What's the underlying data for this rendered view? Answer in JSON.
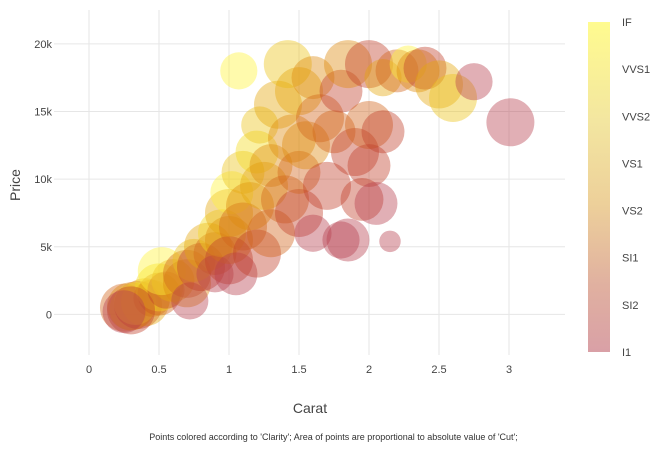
{
  "chart_data": {
    "type": "scatter",
    "variant": "bubble",
    "xlabel": "Carat",
    "ylabel": "Price",
    "xlim": [
      -0.25,
      3.4
    ],
    "ylim": [
      -3000,
      22500
    ],
    "xticks": [
      0,
      0.5,
      1,
      1.5,
      2,
      2.5,
      3
    ],
    "xtick_labels": [
      "0",
      "0.5",
      "1",
      "1.5",
      "2",
      "2.5",
      "3"
    ],
    "yticks": [
      0,
      5000,
      10000,
      15000,
      20000
    ],
    "ytick_labels": [
      "0",
      "5k",
      "10k",
      "15k",
      "20k"
    ],
    "grid": true,
    "color_by": "Clarity",
    "size_by": "Cut",
    "colorbar": {
      "position": "right",
      "labels": [
        "IF",
        "VVS1",
        "VVS2",
        "VS1",
        "VS2",
        "SI1",
        "SI2",
        "I1"
      ],
      "colors": {
        "IF": "#fff23a",
        "VVS1": "#f4dc20",
        "VVS2": "#ecc418",
        "VS1": "#e4a80c",
        "VS2": "#de8a0e",
        "SI1": "#d2641a",
        "SI2": "#c2412a",
        "I1": "#b8404e"
      }
    },
    "caption": "Points colored according to 'Clarity'; Area of points are proportional to absolute value of 'Cut';",
    "points": [
      [
        0.25,
        500,
        "SI1",
        5
      ],
      [
        0.3,
        600,
        "VS2",
        5
      ],
      [
        0.3,
        400,
        "VVS2",
        4
      ],
      [
        0.35,
        700,
        "SI2",
        5
      ],
      [
        0.4,
        900,
        "VS1",
        5
      ],
      [
        0.33,
        800,
        "IF",
        4
      ],
      [
        0.45,
        1200,
        "VS2",
        3
      ],
      [
        0.5,
        1500,
        "SI1",
        4
      ],
      [
        0.5,
        2000,
        "VVS1",
        5
      ],
      [
        0.55,
        1800,
        "SI2",
        3
      ],
      [
        0.6,
        2500,
        "VS1",
        4
      ],
      [
        0.52,
        3200,
        "IF",
        5
      ],
      [
        0.7,
        2300,
        "VS2",
        5
      ],
      [
        0.7,
        3000,
        "SI1",
        5
      ],
      [
        0.72,
        1000,
        "I1",
        3
      ],
      [
        0.75,
        4000,
        "VVS2",
        4
      ],
      [
        0.8,
        3500,
        "SI2",
        5
      ],
      [
        0.85,
        5000,
        "VS1",
        5
      ],
      [
        0.9,
        4500,
        "SI1",
        4
      ],
      [
        0.9,
        3000,
        "I1",
        3
      ],
      [
        0.95,
        6000,
        "VVS1",
        5
      ],
      [
        1.0,
        5500,
        "VS2",
        5
      ],
      [
        1.0,
        4000,
        "SI2",
        5
      ],
      [
        1.0,
        7500,
        "VS1",
        5
      ],
      [
        1.02,
        9000,
        "IF",
        4
      ],
      [
        1.05,
        3000,
        "I1",
        4
      ],
      [
        1.1,
        6500,
        "SI1",
        5
      ],
      [
        1.1,
        10500,
        "VVS2",
        4
      ],
      [
        1.15,
        8000,
        "VS2",
        5
      ],
      [
        1.2,
        4500,
        "SI2",
        5
      ],
      [
        1.2,
        12000,
        "VVS1",
        4
      ],
      [
        1.22,
        14000,
        "VVS2",
        3
      ],
      [
        1.25,
        9500,
        "VS1",
        5
      ],
      [
        1.3,
        6000,
        "SI1",
        5
      ],
      [
        1.3,
        11000,
        "VS2",
        4
      ],
      [
        1.35,
        15500,
        "VS1",
        5
      ],
      [
        1.4,
        8500,
        "SI1",
        5
      ],
      [
        1.42,
        18500,
        "VVS2",
        5
      ],
      [
        1.45,
        13000,
        "VS2",
        5
      ],
      [
        1.5,
        7500,
        "SI2",
        5
      ],
      [
        1.5,
        16500,
        "VS1",
        5
      ],
      [
        1.5,
        10500,
        "SI1",
        4
      ],
      [
        1.55,
        12500,
        "VS2",
        5
      ],
      [
        1.6,
        17500,
        "VS2",
        4
      ],
      [
        1.6,
        6000,
        "I1",
        3
      ],
      [
        1.65,
        14500,
        "SI1",
        5
      ],
      [
        1.7,
        9500,
        "SI2",
        5
      ],
      [
        1.75,
        13500,
        "SI1",
        4
      ],
      [
        1.8,
        16500,
        "SI2",
        4
      ],
      [
        1.8,
        5500,
        "I1",
        3
      ],
      [
        1.85,
        5500,
        "I1",
        4
      ],
      [
        1.85,
        18500,
        "VS2",
        5
      ],
      [
        1.9,
        12000,
        "SI2",
        5
      ],
      [
        1.95,
        8500,
        "SI2",
        4
      ],
      [
        2.0,
        14000,
        "SI1",
        5
      ],
      [
        2.0,
        18500,
        "SI2",
        5
      ],
      [
        2.0,
        11000,
        "SI2",
        4
      ],
      [
        2.05,
        8200,
        "I1",
        4
      ],
      [
        2.1,
        13500,
        "SI2",
        4
      ],
      [
        2.1,
        17500,
        "VS1",
        3
      ],
      [
        2.15,
        5400,
        "I1",
        1
      ],
      [
        2.2,
        18000,
        "SI1",
        4
      ],
      [
        2.28,
        18500,
        "IF",
        3
      ],
      [
        2.35,
        18000,
        "VS2",
        4
      ],
      [
        2.4,
        18200,
        "SI2",
        4
      ],
      [
        2.5,
        17000,
        "VS1",
        5
      ],
      [
        2.6,
        16000,
        "VVS2",
        5
      ],
      [
        2.75,
        17200,
        "I1",
        3
      ],
      [
        3.01,
        14200,
        "I1",
        5
      ],
      [
        1.07,
        18000,
        "IF",
        3
      ],
      [
        0.3,
        300,
        "SI2",
        5
      ],
      [
        0.25,
        200,
        "I1",
        4
      ]
    ]
  }
}
